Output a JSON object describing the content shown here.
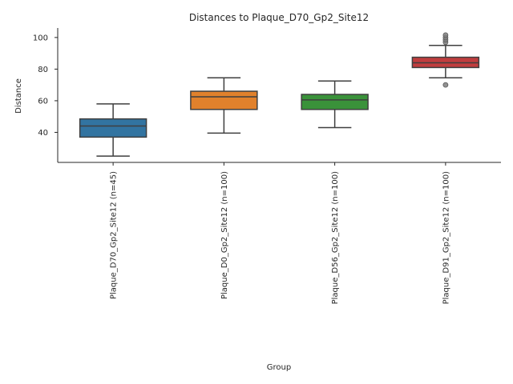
{
  "chart_data": {
    "type": "box",
    "title": "Distances to Plaque_D70_Gp2_Site12",
    "xlabel": "Group",
    "ylabel": "Distance",
    "ylim": [
      21,
      106
    ],
    "yticks": [
      40,
      60,
      80,
      100
    ],
    "grid": false,
    "groups": [
      {
        "name": "Plaque_D70_Gp2_Site12 (n=45)",
        "color": "#3274a1",
        "whisker_low": 25,
        "q1": 37,
        "median": 44,
        "q3": 48.5,
        "whisker_high": 58,
        "outliers": []
      },
      {
        "name": "Plaque_D0_Gp2_Site12 (n=100)",
        "color": "#e1812c",
        "whisker_low": 39.5,
        "q1": 54.5,
        "median": 62.5,
        "q3": 66,
        "whisker_high": 74.5,
        "outliers": []
      },
      {
        "name": "Plaque_D56_Gp2_Site12 (n=100)",
        "color": "#3a923a",
        "whisker_low": 43,
        "q1": 54.5,
        "median": 60.5,
        "q3": 64,
        "whisker_high": 72.5,
        "outliers": []
      },
      {
        "name": "Plaque_D91_Gp2_Site12 (n=100)",
        "color": "#c03d3e",
        "whisker_low": 74.5,
        "q1": 81,
        "median": 84,
        "q3": 87.5,
        "whisker_high": 95,
        "outliers": [
          70,
          97,
          98.5,
          100,
          101.5
        ]
      }
    ]
  }
}
